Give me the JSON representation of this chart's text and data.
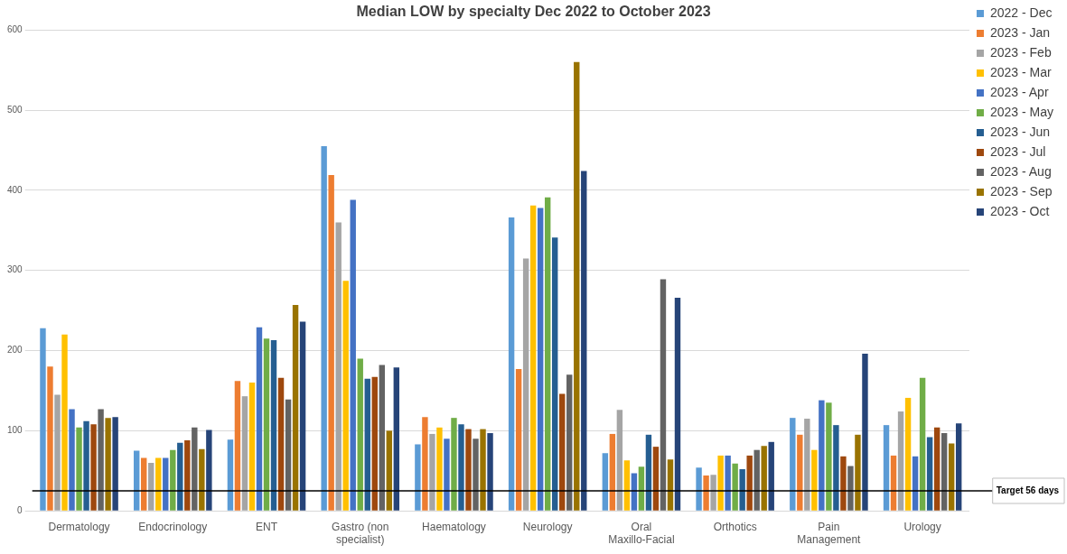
{
  "chart_data": {
    "type": "bar",
    "title": "Median LOW by specialty Dec 2022 to October 2023",
    "categories": [
      "Dermatology",
      "Endocrinology",
      "ENT",
      "Gastro (non specialist)",
      "Haematology",
      "Neurology",
      "Oral Maxillo-Facial",
      "Orthotics",
      "Pain Management",
      "Urology"
    ],
    "series": [
      {
        "name": "2022 - Dec",
        "color": "#5b9bd5",
        "values": [
          228,
          75,
          89,
          455,
          83,
          366,
          72,
          54,
          116,
          107
        ]
      },
      {
        "name": "2023 - Jan",
        "color": "#ed7d31",
        "values": [
          180,
          66,
          162,
          419,
          117,
          177,
          96,
          44,
          95,
          69
        ]
      },
      {
        "name": "2023 - Feb",
        "color": "#a5a5a5",
        "values": [
          145,
          60,
          143,
          360,
          96,
          315,
          126,
          45,
          115,
          124
        ]
      },
      {
        "name": "2023 - Mar",
        "color": "#ffc000",
        "values": [
          220,
          66,
          160,
          287,
          104,
          381,
          63,
          69,
          76,
          141
        ]
      },
      {
        "name": "2023 - Apr",
        "color": "#4472c4",
        "values": [
          127,
          66,
          229,
          388,
          90,
          378,
          47,
          69,
          138,
          68
        ]
      },
      {
        "name": "2023 - May",
        "color": "#70ad47",
        "values": [
          104,
          76,
          215,
          190,
          116,
          391,
          55,
          59,
          135,
          166
        ]
      },
      {
        "name": "2023 - Jun",
        "color": "#255e91",
        "values": [
          112,
          85,
          213,
          165,
          108,
          341,
          95,
          52,
          107,
          92
        ]
      },
      {
        "name": "2023 - Jul",
        "color": "#9e480e",
        "values": [
          108,
          88,
          166,
          167,
          102,
          146,
          80,
          69,
          68,
          104
        ]
      },
      {
        "name": "2023 - Aug",
        "color": "#636363",
        "values": [
          127,
          104,
          139,
          182,
          90,
          170,
          289,
          76,
          56,
          97
        ]
      },
      {
        "name": "2023 - Sep",
        "color": "#997300",
        "values": [
          116,
          77,
          257,
          100,
          102,
          560,
          64,
          81,
          95,
          84
        ]
      },
      {
        "name": "2023 - Oct",
        "color": "#264478",
        "values": [
          117,
          101,
          236,
          179,
          97,
          424,
          266,
          86,
          196,
          109
        ]
      }
    ],
    "ylim": [
      0,
      600
    ],
    "yticks": [
      0,
      100,
      200,
      300,
      400,
      500,
      600
    ],
    "grid": "y",
    "legend": "right",
    "ref_lines": [
      {
        "axis": "y",
        "value": 25,
        "label": "Target 56 days",
        "color": "#000000"
      }
    ]
  }
}
